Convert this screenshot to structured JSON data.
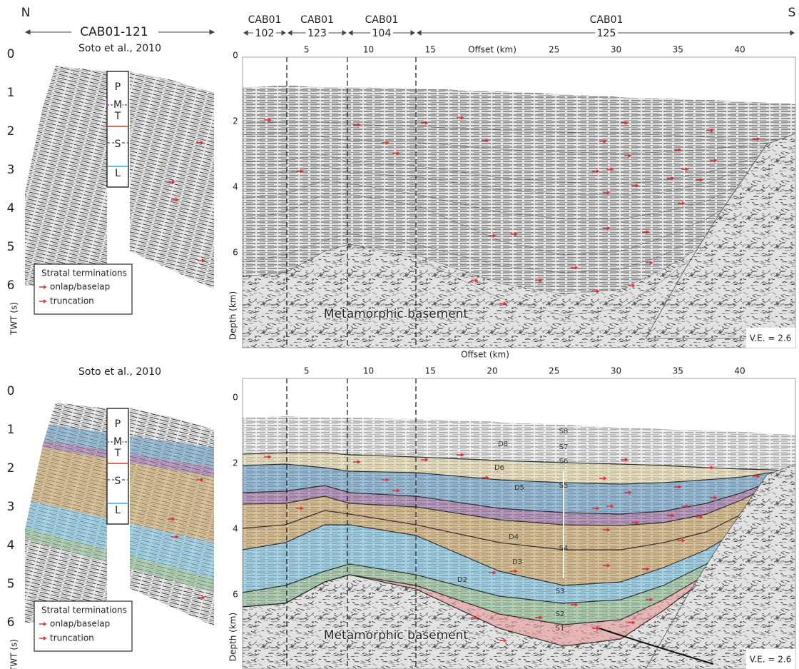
{
  "header": {
    "north": "N",
    "south": "S",
    "left_line": "CAB01-121",
    "right_lines": [
      {
        "name": "CAB01",
        "number": "102"
      },
      {
        "name": "CAB01",
        "number": "123"
      },
      {
        "name": "CAB01",
        "number": "104"
      },
      {
        "name": "CAB01",
        "number": "125"
      }
    ]
  },
  "panels": [
    {
      "citation": "Soto et al., 2010",
      "twt_label": "TWT (s)",
      "twt_ticks": [
        0,
        1,
        2,
        3,
        4,
        5,
        6
      ],
      "units": [
        "P",
        "M",
        "T",
        "S",
        "L"
      ],
      "legend": {
        "title": "Stratal terminations",
        "items": [
          "onlap/baselap",
          "truncation"
        ]
      },
      "offset_label": "Offset (km)",
      "offset_ticks": [
        5,
        10,
        15,
        25,
        30,
        35,
        40
      ],
      "depth_label": "Depth (km)",
      "depth_ticks": [
        0,
        2,
        4,
        6
      ],
      "basement_label": "Metamorphic basement",
      "vertical_exaggeration": "V.E. = 2.6"
    },
    {
      "citation": "Soto et al., 2010",
      "twt_label": "TWT (s)",
      "twt_ticks": [
        0,
        1,
        2,
        3,
        4,
        5,
        6
      ],
      "units": [
        "P",
        "M",
        "T",
        "S",
        "L"
      ],
      "legend": {
        "title": "Stratal terminations",
        "items": [
          "onlap/baselap",
          "truncation"
        ]
      },
      "offset_label": "Offset (km)",
      "offset_ticks": [
        5,
        10,
        15,
        20,
        25,
        30,
        35,
        40
      ],
      "depth_label": "Depth (km)",
      "depth_ticks": [
        0,
        2,
        4,
        6
      ],
      "basement_label": "Metamorphic basement",
      "vertical_exaggeration": "V.E. = 2.6",
      "horizon_labels": [
        "S8",
        "D8",
        "S7",
        "D6",
        "S6",
        "D5",
        "S5",
        "D4",
        "S4",
        "D3",
        "S3",
        "D2",
        "S2",
        "S1"
      ]
    }
  ]
}
